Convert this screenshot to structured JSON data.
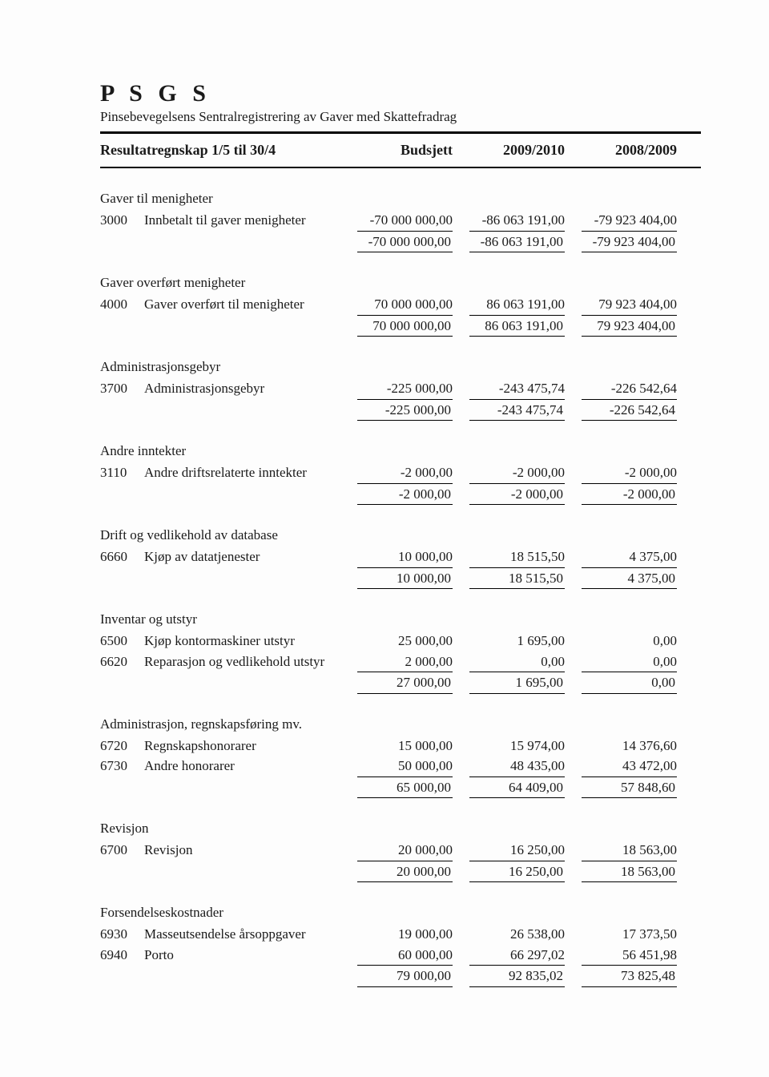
{
  "title": "P S G S",
  "subtitle": "Pinsebevegelsens Sentralregistrering av Gaver med Skattefradrag",
  "header": {
    "desc": "Resultatregnskap 1/5 til 30/4",
    "budget": "Budsjett",
    "y1": "2009/2010",
    "y2": "2008/2009"
  },
  "groups": [
    {
      "title": "Gaver til menigheter",
      "rows": [
        {
          "acct": "3000",
          "desc": "Innbetalt til gaver menigheter",
          "b": "-70 000 000,00",
          "v1": "-86 063 191,00",
          "v2": "-79 923 404,00"
        }
      ],
      "subtotal": {
        "b": "-70 000 000,00",
        "v1": "-86 063 191,00",
        "v2": "-79 923 404,00"
      }
    },
    {
      "title": "Gaver overført menigheter",
      "rows": [
        {
          "acct": "4000",
          "desc": "Gaver overført til menigheter",
          "b": "70 000 000,00",
          "v1": "86 063 191,00",
          "v2": "79 923 404,00"
        }
      ],
      "subtotal": {
        "b": "70 000 000,00",
        "v1": "86 063 191,00",
        "v2": "79 923 404,00"
      }
    },
    {
      "title": "Administrasjonsgebyr",
      "rows": [
        {
          "acct": "3700",
          "desc": "Administrasjonsgebyr",
          "b": "-225 000,00",
          "v1": "-243 475,74",
          "v2": "-226 542,64"
        }
      ],
      "subtotal": {
        "b": "-225 000,00",
        "v1": "-243 475,74",
        "v2": "-226 542,64"
      }
    },
    {
      "title": "Andre inntekter",
      "rows": [
        {
          "acct": "3110",
          "desc": "Andre driftsrelaterte inntekter",
          "b": "-2 000,00",
          "v1": "-2 000,00",
          "v2": "-2 000,00"
        }
      ],
      "subtotal": {
        "b": "-2 000,00",
        "v1": "-2 000,00",
        "v2": "-2 000,00"
      }
    },
    {
      "title": "Drift og vedlikehold av database",
      "rows": [
        {
          "acct": "6660",
          "desc": "Kjøp av datatjenester",
          "b": "10 000,00",
          "v1": "18 515,50",
          "v2": "4 375,00"
        }
      ],
      "subtotal": {
        "b": "10 000,00",
        "v1": "18 515,50",
        "v2": "4 375,00"
      }
    },
    {
      "title": "Inventar og utstyr",
      "rows": [
        {
          "acct": "6500",
          "desc": "Kjøp kontormaskiner utstyr",
          "b": "25 000,00",
          "v1": "1 695,00",
          "v2": "0,00"
        },
        {
          "acct": "6620",
          "desc": "Reparasjon og vedlikehold utstyr",
          "b": "2 000,00",
          "v1": "0,00",
          "v2": "0,00"
        }
      ],
      "subtotal": {
        "b": "27 000,00",
        "v1": "1 695,00",
        "v2": "0,00"
      }
    },
    {
      "title": "Administrasjon, regnskapsføring mv.",
      "rows": [
        {
          "acct": "6720",
          "desc": "Regnskapshonorarer",
          "b": "15 000,00",
          "v1": "15 974,00",
          "v2": "14 376,60"
        },
        {
          "acct": "6730",
          "desc": "Andre honorarer",
          "b": "50 000,00",
          "v1": "48 435,00",
          "v2": "43 472,00"
        }
      ],
      "subtotal": {
        "b": "65 000,00",
        "v1": "64 409,00",
        "v2": "57 848,60"
      }
    },
    {
      "title": "Revisjon",
      "rows": [
        {
          "acct": "6700",
          "desc": "Revisjon",
          "b": "20 000,00",
          "v1": "16 250,00",
          "v2": "18 563,00"
        }
      ],
      "subtotal": {
        "b": "20 000,00",
        "v1": "16 250,00",
        "v2": "18 563,00"
      }
    },
    {
      "title": "Forsendelseskostnader",
      "rows": [
        {
          "acct": "6930",
          "desc": "Masseutsendelse årsoppgaver",
          "b": "19 000,00",
          "v1": "26 538,00",
          "v2": "17 373,50"
        },
        {
          "acct": "6940",
          "desc": "Porto",
          "b": "60 000,00",
          "v1": "66 297,02",
          "v2": "56 451,98"
        }
      ],
      "subtotal": {
        "b": "79 000,00",
        "v1": "92 835,02",
        "v2": "73 825,48"
      }
    }
  ]
}
